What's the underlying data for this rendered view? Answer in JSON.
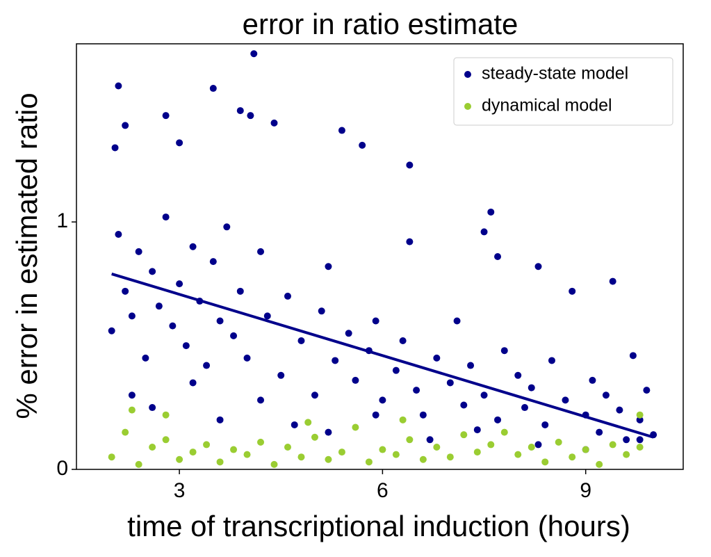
{
  "chart_data": {
    "type": "scatter",
    "title": "error in ratio estimate",
    "xlabel": "time of transcriptional induction (hours)",
    "ylabel": "% error in estimated ratio",
    "xlim": [
      1.48,
      10.44
    ],
    "ylim": [
      0,
      1.72
    ],
    "xticks": [
      3,
      6,
      9
    ],
    "yticks": [
      0,
      1
    ],
    "grid": false,
    "legend": "upper right",
    "series": [
      {
        "name": "steady-state model",
        "color": "#00008b",
        "x": [
          2.1,
          4.1,
          3.5,
          2.2,
          2.8,
          3.9,
          4.05,
          4.4,
          3.0,
          5.4,
          5.7,
          6.4,
          2.05,
          9.4,
          8.3,
          7.6,
          7.5,
          6.4,
          7.7,
          2.0,
          2.1,
          2.2,
          2.3,
          2.4,
          2.5,
          2.6,
          2.7,
          2.8,
          2.9,
          3.0,
          3.1,
          3.2,
          3.3,
          3.4,
          3.5,
          3.6,
          3.7,
          3.8,
          3.9,
          4.0,
          4.2,
          4.3,
          4.5,
          4.6,
          4.8,
          5.0,
          5.1,
          5.2,
          5.3,
          5.5,
          5.6,
          5.8,
          5.9,
          6.0,
          6.2,
          6.3,
          6.5,
          6.6,
          6.8,
          7.0,
          7.1,
          7.2,
          7.3,
          7.5,
          7.7,
          7.8,
          8.0,
          8.1,
          8.2,
          8.4,
          8.5,
          8.7,
          8.8,
          9.0,
          9.1,
          9.2,
          9.3,
          9.5,
          9.6,
          9.7,
          9.8,
          9.9,
          10.0,
          2.3,
          2.6,
          3.2,
          3.6,
          4.2,
          4.7,
          5.2,
          5.9,
          6.7,
          7.4,
          8.3,
          9.0,
          9.8
        ],
        "values": [
          1.55,
          1.68,
          1.54,
          1.39,
          1.43,
          1.45,
          1.43,
          1.4,
          1.32,
          1.37,
          1.31,
          1.23,
          1.3,
          0.76,
          0.82,
          1.04,
          0.96,
          0.92,
          0.86,
          0.56,
          0.95,
          0.72,
          0.62,
          0.88,
          0.45,
          0.8,
          0.66,
          1.02,
          0.58,
          0.75,
          0.5,
          0.9,
          0.68,
          0.42,
          0.84,
          0.6,
          0.98,
          0.54,
          0.72,
          0.45,
          0.88,
          0.62,
          0.38,
          0.7,
          0.52,
          0.3,
          0.64,
          0.82,
          0.44,
          0.55,
          0.36,
          0.48,
          0.6,
          0.28,
          0.4,
          0.52,
          0.32,
          0.22,
          0.45,
          0.35,
          0.6,
          0.26,
          0.42,
          0.3,
          0.2,
          0.48,
          0.38,
          0.25,
          0.33,
          0.18,
          0.44,
          0.28,
          0.72,
          0.22,
          0.36,
          0.15,
          0.3,
          0.24,
          0.12,
          0.46,
          0.2,
          0.32,
          0.14,
          0.3,
          0.25,
          0.35,
          0.2,
          0.28,
          0.18,
          0.15,
          0.22,
          0.12,
          0.16,
          0.1,
          0.08,
          0.12
        ]
      },
      {
        "name": "dynamical model",
        "color": "#9acd32",
        "x": [
          2.0,
          2.2,
          2.4,
          2.6,
          2.8,
          3.0,
          3.2,
          3.4,
          3.6,
          3.8,
          4.0,
          4.2,
          4.4,
          4.6,
          4.8,
          5.0,
          5.2,
          5.4,
          5.6,
          5.8,
          6.0,
          6.2,
          6.4,
          6.6,
          6.8,
          7.0,
          7.2,
          7.4,
          7.6,
          7.8,
          8.0,
          8.2,
          8.4,
          8.6,
          8.8,
          9.0,
          9.2,
          9.4,
          9.6,
          9.8,
          2.3,
          2.8,
          9.8,
          4.9,
          6.3
        ],
        "values": [
          0.05,
          0.15,
          0.02,
          0.09,
          0.12,
          0.04,
          0.07,
          0.1,
          0.03,
          0.08,
          0.06,
          0.11,
          0.02,
          0.09,
          0.05,
          0.13,
          0.04,
          0.07,
          0.17,
          0.03,
          0.08,
          0.06,
          0.12,
          0.04,
          0.09,
          0.05,
          0.14,
          0.07,
          0.1,
          0.15,
          0.06,
          0.09,
          0.03,
          0.11,
          0.05,
          0.08,
          0.02,
          0.1,
          0.06,
          0.09,
          0.24,
          0.22,
          0.22,
          0.19,
          0.2
        ]
      }
    ],
    "trend": {
      "color": "#00008b",
      "x": [
        2,
        10
      ],
      "values": [
        0.79,
        0.13
      ]
    }
  }
}
